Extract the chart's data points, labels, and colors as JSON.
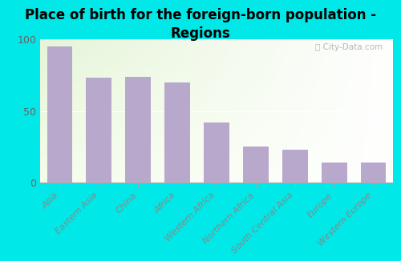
{
  "title": "Place of birth for the foreign-born population -\nRegions",
  "categories": [
    "Asia",
    "Eastern Asia",
    "China",
    "Africa",
    "Western Africa",
    "Northern Africa",
    "South Central Asia",
    "Europe",
    "Western Europe"
  ],
  "values": [
    95,
    73,
    74,
    70,
    42,
    25,
    23,
    14,
    14
  ],
  "bar_color": "#b8a8cc",
  "background_outer": "#00e8e8",
  "ylim": [
    0,
    100
  ],
  "yticks": [
    0,
    50,
    100
  ],
  "title_fontsize": 12,
  "tick_label_fontsize": 8,
  "watermark_text": "ⓘ City-Data.com"
}
